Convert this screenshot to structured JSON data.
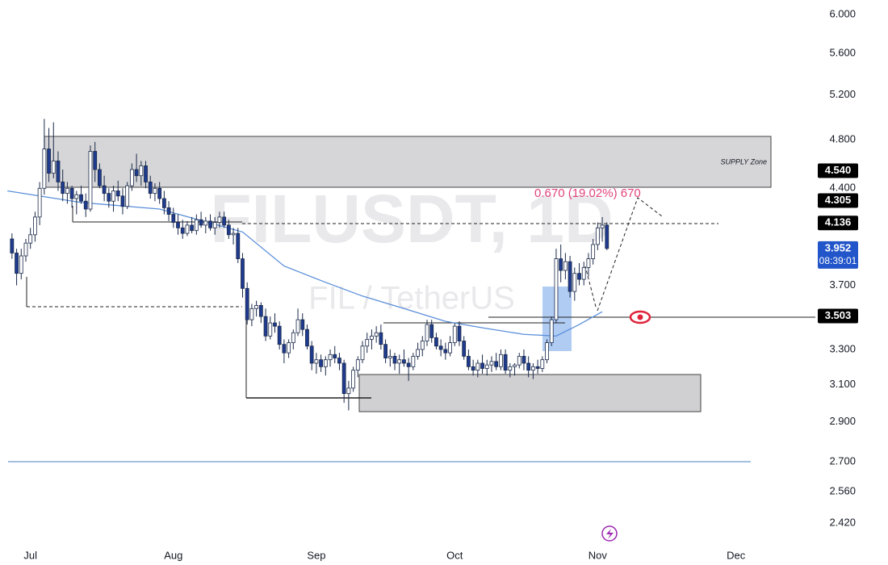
{
  "chart_data": {
    "type": "candlestick",
    "watermark": [
      "FILUSDT, 1D",
      "FIL / TetherUS"
    ],
    "annotations": {
      "supply_zone": "SUPPLY Zone",
      "measure": "0.670 (19.02%) 670"
    },
    "log_scale": true,
    "grid": false,
    "up_color": "#ffffff",
    "down_color": "#1f3b8f",
    "wick_color": "#1b2a4a",
    "ylim": [
      2.246,
      6.158
    ],
    "yticks": [
      {
        "value": 6.0,
        "label": "6.000"
      },
      {
        "value": 5.6,
        "label": "5.600"
      },
      {
        "value": 5.2,
        "label": "5.200"
      },
      {
        "value": 4.8,
        "label": "4.800"
      },
      {
        "value": 4.4,
        "label": "4.400"
      },
      {
        "value": 3.7,
        "label": "3.700"
      },
      {
        "value": 3.3,
        "label": "3.300"
      },
      {
        "value": 3.1,
        "label": "3.100"
      },
      {
        "value": 2.9,
        "label": "2.900"
      },
      {
        "value": 2.7,
        "label": "2.700"
      },
      {
        "value": 2.56,
        "label": "2.560"
      },
      {
        "value": 2.42,
        "label": "2.420"
      }
    ],
    "xlim": [
      -2.6,
      174.2
    ],
    "xticks": [
      {
        "value": 4,
        "label": "Jul"
      },
      {
        "value": 35,
        "label": "Aug"
      },
      {
        "value": 66,
        "label": "Sep"
      },
      {
        "value": 96,
        "label": "Oct"
      },
      {
        "value": 127,
        "label": "Nov"
      },
      {
        "value": 157,
        "label": "Dec"
      }
    ],
    "price_labels": [
      {
        "value": 4.54,
        "label": "4.540",
        "color": "#000000"
      },
      {
        "value": 4.305,
        "label": "4.305",
        "color": "#000000"
      },
      {
        "value": 4.136,
        "label": "4.136",
        "color": "#000000"
      },
      {
        "value": 3.952,
        "label": "3.952",
        "sublabel": "08:39:01",
        "color": "#2155c9"
      },
      {
        "value": 3.503,
        "label": "3.503",
        "color": "#000000"
      }
    ],
    "ma": {
      "color": "#5b8fd9",
      "x": [
        -1,
        15,
        32,
        50,
        59,
        68,
        76,
        85,
        94,
        102,
        111,
        118,
        123,
        128
      ],
      "values": [
        4.38,
        4.29,
        4.24,
        4.07,
        3.83,
        3.72,
        3.63,
        3.55,
        3.47,
        3.43,
        3.39,
        3.38,
        3.45,
        3.53
      ]
    },
    "ohlc": [
      [
        4.02,
        4.06,
        3.88,
        3.92
      ],
      [
        3.92,
        3.95,
        3.7,
        3.78
      ],
      [
        3.78,
        3.95,
        3.74,
        3.9
      ],
      [
        3.9,
        4.02,
        3.86,
        3.99
      ],
      [
        3.99,
        4.1,
        3.95,
        4.05
      ],
      [
        4.05,
        4.22,
        4.0,
        4.18
      ],
      [
        4.18,
        4.45,
        4.12,
        4.4
      ],
      [
        4.4,
        4.98,
        4.35,
        4.72
      ],
      [
        4.72,
        4.9,
        4.45,
        4.52
      ],
      [
        4.52,
        4.95,
        4.48,
        4.62
      ],
      [
        4.62,
        4.7,
        4.38,
        4.45
      ],
      [
        4.45,
        4.55,
        4.3,
        4.36
      ],
      [
        4.36,
        4.45,
        4.28,
        4.4
      ],
      [
        4.4,
        4.42,
        4.25,
        4.32
      ],
      [
        4.32,
        4.38,
        4.2,
        4.35
      ],
      [
        4.35,
        4.42,
        4.28,
        4.3
      ],
      [
        4.3,
        4.36,
        4.18,
        4.24
      ],
      [
        4.24,
        4.75,
        4.22,
        4.7
      ],
      [
        4.7,
        4.78,
        4.45,
        4.55
      ],
      [
        4.55,
        4.6,
        4.4,
        4.42
      ],
      [
        4.42,
        4.5,
        4.3,
        4.36
      ],
      [
        4.36,
        4.4,
        4.25,
        4.3
      ],
      [
        4.3,
        4.42,
        4.22,
        4.38
      ],
      [
        4.38,
        4.46,
        4.3,
        4.34
      ],
      [
        4.34,
        4.4,
        4.2,
        4.26
      ],
      [
        4.26,
        4.45,
        4.24,
        4.42
      ],
      [
        4.42,
        4.6,
        4.38,
        4.55
      ],
      [
        4.55,
        4.68,
        4.45,
        4.5
      ],
      [
        4.5,
        4.62,
        4.42,
        4.58
      ],
      [
        4.58,
        4.62,
        4.4,
        4.45
      ],
      [
        4.45,
        4.5,
        4.32,
        4.36
      ],
      [
        4.36,
        4.44,
        4.3,
        4.4
      ],
      [
        4.4,
        4.45,
        4.28,
        4.32
      ],
      [
        4.32,
        4.38,
        4.2,
        4.25
      ],
      [
        4.25,
        4.3,
        4.15,
        4.2
      ],
      [
        4.2,
        4.25,
        4.1,
        4.14
      ],
      [
        4.14,
        4.2,
        4.05,
        4.1
      ],
      [
        4.1,
        4.16,
        4.02,
        4.06
      ],
      [
        4.06,
        4.15,
        4.04,
        4.12
      ],
      [
        4.12,
        4.18,
        4.06,
        4.08
      ],
      [
        4.08,
        4.2,
        4.05,
        4.16
      ],
      [
        4.16,
        4.22,
        4.1,
        4.12
      ],
      [
        4.12,
        4.18,
        4.06,
        4.15
      ],
      [
        4.15,
        4.2,
        4.08,
        4.1
      ],
      [
        4.1,
        4.18,
        4.05,
        4.14
      ],
      [
        4.14,
        4.22,
        4.1,
        4.18
      ],
      [
        4.18,
        4.22,
        4.1,
        4.12
      ],
      [
        4.12,
        4.16,
        4.02,
        4.05
      ],
      [
        4.05,
        4.1,
        3.98,
        4.06
      ],
      [
        4.06,
        4.1,
        3.85,
        3.88
      ],
      [
        3.88,
        3.92,
        3.62,
        3.68
      ],
      [
        3.68,
        3.72,
        3.45,
        3.48
      ],
      [
        3.48,
        3.58,
        3.44,
        3.55
      ],
      [
        3.55,
        3.6,
        3.5,
        3.57
      ],
      [
        3.57,
        3.59,
        3.46,
        3.5
      ],
      [
        3.5,
        3.55,
        3.35,
        3.38
      ],
      [
        3.38,
        3.5,
        3.36,
        3.46
      ],
      [
        3.46,
        3.52,
        3.4,
        3.44
      ],
      [
        3.44,
        3.47,
        3.3,
        3.33
      ],
      [
        3.33,
        3.36,
        3.22,
        3.28
      ],
      [
        3.28,
        3.36,
        3.25,
        3.34
      ],
      [
        3.34,
        3.42,
        3.3,
        3.4
      ],
      [
        3.4,
        3.55,
        3.38,
        3.48
      ],
      [
        3.48,
        3.52,
        3.38,
        3.42
      ],
      [
        3.42,
        3.45,
        3.3,
        3.32
      ],
      [
        3.32,
        3.35,
        3.18,
        3.22
      ],
      [
        3.22,
        3.28,
        3.16,
        3.24
      ],
      [
        3.24,
        3.27,
        3.17,
        3.2
      ],
      [
        3.2,
        3.26,
        3.15,
        3.24
      ],
      [
        3.24,
        3.3,
        3.2,
        3.27
      ],
      [
        3.27,
        3.32,
        3.22,
        3.25
      ],
      [
        3.25,
        3.28,
        3.18,
        3.22
      ],
      [
        3.22,
        3.24,
        3.0,
        3.05
      ],
      [
        3.05,
        3.12,
        2.96,
        3.08
      ],
      [
        3.08,
        3.2,
        3.06,
        3.18
      ],
      [
        3.18,
        3.26,
        3.14,
        3.24
      ],
      [
        3.24,
        3.35,
        3.22,
        3.32
      ],
      [
        3.32,
        3.4,
        3.28,
        3.36
      ],
      [
        3.36,
        3.42,
        3.3,
        3.38
      ],
      [
        3.38,
        3.44,
        3.34,
        3.4
      ],
      [
        3.4,
        3.45,
        3.3,
        3.33
      ],
      [
        3.33,
        3.36,
        3.22,
        3.25
      ],
      [
        3.25,
        3.3,
        3.2,
        3.26
      ],
      [
        3.26,
        3.28,
        3.18,
        3.22
      ],
      [
        3.22,
        3.27,
        3.16,
        3.24
      ],
      [
        3.24,
        3.3,
        3.2,
        3.22
      ],
      [
        3.22,
        3.25,
        3.12,
        3.2
      ],
      [
        3.2,
        3.28,
        3.18,
        3.26
      ],
      [
        3.26,
        3.34,
        3.24,
        3.3
      ],
      [
        3.3,
        3.38,
        3.26,
        3.35
      ],
      [
        3.35,
        3.48,
        3.32,
        3.45
      ],
      [
        3.45,
        3.48,
        3.34,
        3.37
      ],
      [
        3.37,
        3.4,
        3.3,
        3.32
      ],
      [
        3.32,
        3.36,
        3.26,
        3.3
      ],
      [
        3.3,
        3.34,
        3.24,
        3.28
      ],
      [
        3.28,
        3.38,
        3.26,
        3.34
      ],
      [
        3.34,
        3.46,
        3.32,
        3.44
      ],
      [
        3.44,
        3.47,
        3.32,
        3.35
      ],
      [
        3.35,
        3.38,
        3.24,
        3.26
      ],
      [
        3.26,
        3.3,
        3.18,
        3.2
      ],
      [
        3.2,
        3.24,
        3.15,
        3.18
      ],
      [
        3.18,
        3.24,
        3.14,
        3.22
      ],
      [
        3.22,
        3.27,
        3.16,
        3.19
      ],
      [
        3.19,
        3.24,
        3.15,
        3.21
      ],
      [
        3.21,
        3.26,
        3.17,
        3.23
      ],
      [
        3.23,
        3.28,
        3.18,
        3.2
      ],
      [
        3.2,
        3.3,
        3.18,
        3.27
      ],
      [
        3.27,
        3.3,
        3.16,
        3.18
      ],
      [
        3.18,
        3.22,
        3.14,
        3.2
      ],
      [
        3.2,
        3.22,
        3.15,
        3.21
      ],
      [
        3.21,
        3.28,
        3.19,
        3.26
      ],
      [
        3.26,
        3.3,
        3.18,
        3.22
      ],
      [
        3.22,
        3.26,
        3.14,
        3.18
      ],
      [
        3.18,
        3.22,
        3.13,
        3.2
      ],
      [
        3.2,
        3.24,
        3.16,
        3.19
      ],
      [
        3.19,
        3.26,
        3.17,
        3.24
      ],
      [
        3.24,
        3.36,
        3.22,
        3.34
      ],
      [
        3.34,
        3.5,
        3.32,
        3.48
      ],
      [
        3.48,
        3.95,
        3.46,
        3.88
      ],
      [
        3.88,
        3.98,
        3.72,
        3.8
      ],
      [
        3.8,
        3.92,
        3.74,
        3.86
      ],
      [
        3.86,
        3.9,
        3.62,
        3.66
      ],
      [
        3.66,
        3.82,
        3.6,
        3.78
      ],
      [
        3.78,
        3.85,
        3.7,
        3.74
      ],
      [
        3.74,
        3.86,
        3.7,
        3.82
      ],
      [
        3.82,
        3.92,
        3.76,
        3.88
      ],
      [
        3.88,
        4.02,
        3.84,
        3.98
      ],
      [
        3.98,
        4.14,
        3.94,
        4.1
      ],
      [
        4.1,
        4.18,
        4.0,
        4.12
      ],
      [
        4.12,
        4.14,
        3.94,
        3.952
      ]
    ]
  }
}
